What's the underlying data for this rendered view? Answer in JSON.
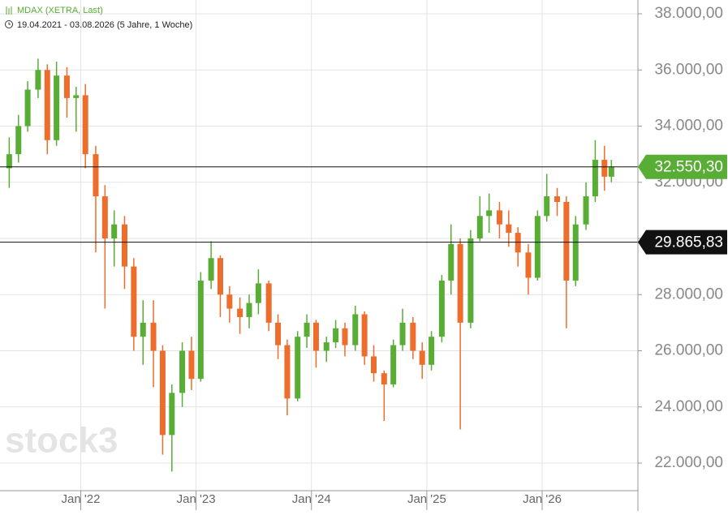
{
  "chart_data": {
    "type": "candlestick",
    "title": "MDAX (XETRA, Last)",
    "subtitle": "19.04.2021 - 03.08.2026  (5 Jahre, 1 Woche)",
    "watermark": "stock3",
    "up_color": "#58ad35",
    "down_color": "#ec6d2c",
    "grid": true,
    "xlim": [
      2021.3,
      2026.83
    ],
    "ylim": [
      21018,
      38491
    ],
    "xticks": [
      {
        "value": 2022,
        "label": "Jan '22"
      },
      {
        "value": 2023,
        "label": "Jan '23"
      },
      {
        "value": 2024,
        "label": "Jan '24"
      },
      {
        "value": 2025,
        "label": "Jan '25"
      },
      {
        "value": 2026,
        "label": "Jan '26"
      }
    ],
    "yticks": [
      {
        "value": 22000,
        "label": "22.000,00"
      },
      {
        "value": 24000,
        "label": "24.000,00"
      },
      {
        "value": 26000,
        "label": "26.000,00"
      },
      {
        "value": 28000,
        "label": "28.000,00"
      },
      {
        "value": 30000,
        "label": "30.000,00"
      },
      {
        "value": 32000,
        "label": "32.000,00"
      },
      {
        "value": 34000,
        "label": "34.000,00"
      },
      {
        "value": 36000,
        "label": "36.000,00"
      },
      {
        "value": 38000,
        "label": "38.000,00"
      }
    ],
    "levels": [
      {
        "value": 32550.3,
        "label": "32.550,30",
        "color": "#58ad35"
      },
      {
        "value": 29865.83,
        "label": "29.865,83",
        "color": "#111111"
      }
    ],
    "x": [
      2021.38,
      2021.46,
      2021.54,
      2021.63,
      2021.71,
      2021.79,
      2021.88,
      2021.96,
      2022.04,
      2022.13,
      2022.21,
      2022.29,
      2022.38,
      2022.46,
      2022.54,
      2022.63,
      2022.71,
      2022.79,
      2022.88,
      2022.96,
      2023.04,
      2023.13,
      2023.21,
      2023.29,
      2023.38,
      2023.46,
      2023.54,
      2023.63,
      2023.71,
      2023.79,
      2023.88,
      2023.96,
      2024.04,
      2024.13,
      2024.21,
      2024.29,
      2024.38,
      2024.46,
      2024.54,
      2024.63,
      2024.71,
      2024.79,
      2024.88,
      2024.96,
      2025.04,
      2025.13,
      2025.21,
      2025.29,
      2025.38,
      2025.46,
      2025.54,
      2025.63,
      2025.71,
      2025.79,
      2025.88,
      2025.96,
      2026.04,
      2026.13,
      2026.21,
      2026.29,
      2026.38,
      2026.46,
      2026.54,
      2026.6
    ],
    "open": [
      32500,
      33000,
      34000,
      35300,
      36000,
      33500,
      35800,
      35000,
      35100,
      33000,
      31500,
      30000,
      30500,
      29000,
      26500,
      27000,
      26000,
      23000,
      24500,
      26000,
      25000,
      28500,
      29300,
      28000,
      27500,
      27200,
      27700,
      28400,
      27000,
      26200,
      24300,
      26500,
      27000,
      26000,
      26300,
      26800,
      26200,
      27300,
      25800,
      25200,
      24800,
      26200,
      27000,
      26000,
      25500,
      26500,
      28500,
      29800,
      27000,
      30000,
      30800,
      31000,
      30500,
      30200,
      29500,
      28600,
      30800,
      31500,
      31300,
      28500,
      30500,
      31500,
      32800,
      32200
    ],
    "high": [
      33600,
      34400,
      35600,
      36400,
      36200,
      36300,
      36100,
      35400,
      35500,
      33300,
      31900,
      31000,
      30800,
      29300,
      27800,
      27800,
      26200,
      24800,
      26300,
      26500,
      28800,
      29900,
      29400,
      28300,
      27900,
      28000,
      28900,
      28500,
      27300,
      26400,
      26700,
      27300,
      27100,
      26500,
      27100,
      27000,
      27600,
      27400,
      26200,
      25300,
      26400,
      27500,
      27200,
      26300,
      26700,
      28700,
      30500,
      30000,
      30300,
      31500,
      31600,
      31300,
      31000,
      30400,
      29800,
      31000,
      32300,
      31800,
      31500,
      30800,
      32000,
      33500,
      33300,
      32800
    ],
    "low": [
      31800,
      32700,
      33800,
      35000,
      33000,
      33300,
      34300,
      33800,
      32500,
      29500,
      27500,
      29000,
      28200,
      26000,
      25500,
      24700,
      22300,
      21700,
      24000,
      24600,
      24900,
      28200,
      27200,
      27000,
      26600,
      26800,
      27300,
      26700,
      25700,
      23700,
      24200,
      26100,
      25400,
      25600,
      26100,
      25800,
      26000,
      25500,
      24900,
      23500,
      24700,
      26000,
      25700,
      25000,
      25300,
      26300,
      28000,
      23200,
      26800,
      29900,
      30200,
      30000,
      29700,
      29000,
      28000,
      28500,
      30600,
      30800,
      26800,
      28300,
      30300,
      31300,
      31700,
      32000
    ],
    "close": [
      33000,
      34000,
      35300,
      36000,
      33500,
      35800,
      35000,
      35100,
      33000,
      31500,
      30000,
      30500,
      29000,
      26500,
      27000,
      26000,
      23000,
      24500,
      26000,
      25000,
      28500,
      29300,
      28000,
      27500,
      27200,
      27700,
      28400,
      27000,
      26200,
      24300,
      26500,
      27000,
      26000,
      26300,
      26800,
      26200,
      27300,
      25800,
      25200,
      24800,
      26200,
      27000,
      26000,
      25500,
      26500,
      28500,
      29800,
      27000,
      30000,
      30800,
      31000,
      30500,
      30200,
      29500,
      28600,
      30800,
      31500,
      31300,
      28500,
      30500,
      31500,
      32800,
      32200,
      32550.3
    ]
  }
}
